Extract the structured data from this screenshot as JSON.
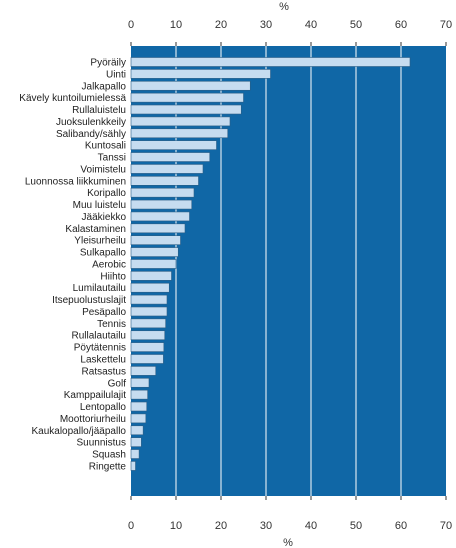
{
  "chart_data": {
    "type": "bar",
    "orientation": "horizontal",
    "categories": [
      "Pyöräily",
      "Uinti",
      "Jalkapallo",
      "Kävely kuntoilumielessä",
      "Rullaluistelu",
      "Juoksulenkkeily",
      "Salibandy/sähly",
      "Kuntosali",
      "Tanssi",
      "Voimistelu",
      "Luonnossa liikkuminen",
      "Koripallo",
      "Muu luistelu",
      "Jääkiekko",
      "Kalastaminen",
      "Yleisurheilu",
      "Sulkapallo",
      "Aerobic",
      "Hiihto",
      "Lumilautailu",
      "Itsepuolustuslajit",
      "Pesäpallo",
      "Tennis",
      "Rullalautailu",
      "Pöytätennis",
      "Laskettelu",
      "Ratsastus",
      "Golf",
      "Kamppailulajit",
      "Lentopallo",
      "Moottoriurheilu",
      "Kaukalopallo/jääpallo",
      "Suunnistus",
      "Squash",
      "Ringette"
    ],
    "values": [
      62,
      31,
      26.5,
      25,
      24.5,
      22,
      21.5,
      19,
      17.5,
      16,
      15,
      14,
      13.5,
      13,
      12,
      11,
      10.5,
      10,
      9,
      8.5,
      8,
      8,
      7.7,
      7.5,
      7.3,
      7.2,
      5.5,
      4,
      3.7,
      3.5,
      3.3,
      2.7,
      2.3,
      1.8,
      1
    ],
    "xlabel": "%",
    "xlim": [
      0,
      70
    ],
    "xticks": [
      0,
      10,
      20,
      30,
      40,
      50,
      60,
      70
    ],
    "grid": true,
    "colors": {
      "plot_background": "#1067a6",
      "bar_fill": "#c6dcf0",
      "bar_stroke": "#2b5e86",
      "grid": "#ffffff"
    }
  }
}
